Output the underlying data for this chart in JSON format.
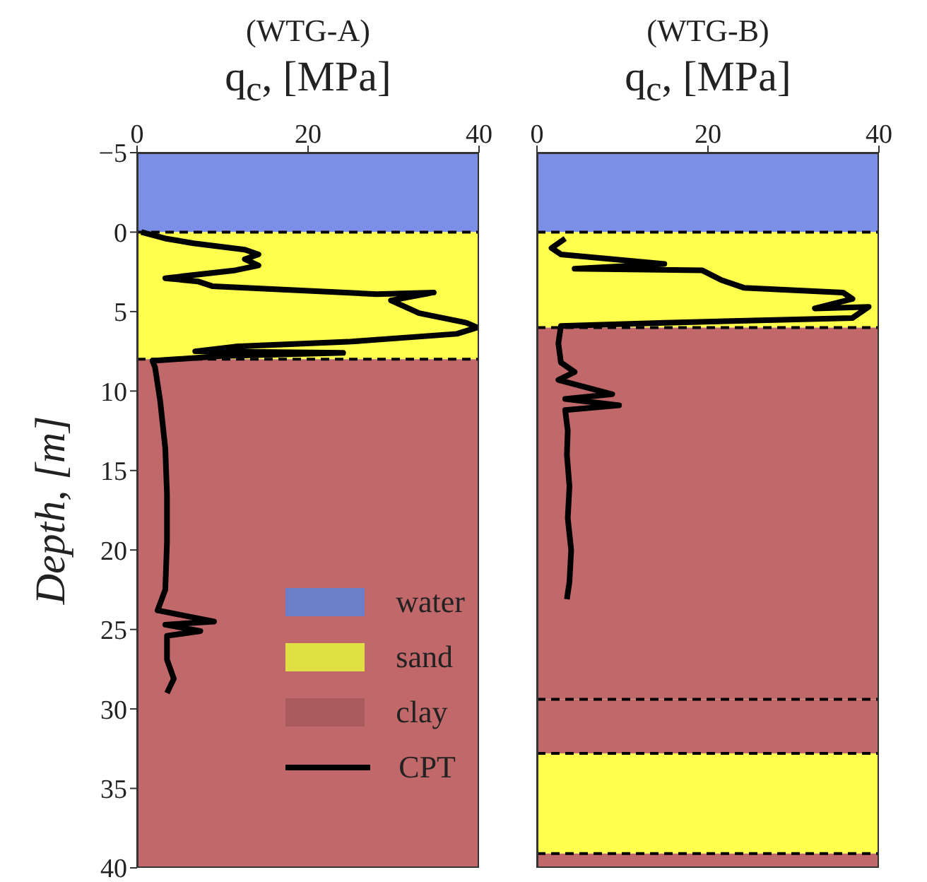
{
  "chart_data": [
    {
      "type": "line",
      "title": "(WTG-A)",
      "xlabel": "q$_{c}$, [MPa]",
      "ylabel": "Depth, [m]",
      "xlim": [
        0,
        40
      ],
      "xticks": [
        0,
        20,
        40
      ],
      "ylim": [
        40,
        -5
      ],
      "yticks": [
        -5,
        0,
        5,
        10,
        15,
        20,
        25,
        30,
        35,
        40
      ],
      "legend": "bottom right",
      "bands": [
        {
          "axis": "y",
          "from": -5,
          "to": 0,
          "label": "water",
          "color": "#7b8fe6"
        },
        {
          "axis": "y",
          "from": 0,
          "to": 8,
          "label": "sand",
          "color": "#ffff4d"
        },
        {
          "axis": "y",
          "from": 8,
          "to": 40,
          "label": "clay",
          "color": "#c0686a"
        }
      ],
      "ref_lines": [
        {
          "axis": "y",
          "value": 0,
          "line_style": "dashed",
          "color": "#000000"
        },
        {
          "axis": "y",
          "value": 8,
          "line_style": "dashed",
          "color": "#000000"
        }
      ],
      "series": [
        {
          "name": "CPT",
          "color": "#000000",
          "x": [
            0.5,
            3.3,
            6.6,
            12.6,
            14.2,
            12.6,
            14.2,
            11.5,
            3.3,
            7.1,
            8.8,
            28,
            34.7,
            29.7,
            33,
            38.5,
            39.8,
            37.4,
            24.7,
            11.5,
            6.8,
            24.1,
            9.9,
            1.8,
            2.1,
            2.7,
            3.3,
            3.5,
            3.5,
            3.3,
            2.4,
            9,
            3.3,
            7.4,
            3.5,
            3.5,
            4.3,
            3.5
          ],
          "values": [
            0,
            0.4,
            0.7,
            1.1,
            1.4,
            1.7,
            2.1,
            2.4,
            2.9,
            3.1,
            3.4,
            3.9,
            3.8,
            4.3,
            5.1,
            5.7,
            6,
            6.4,
            6.9,
            7.2,
            7.5,
            7.6,
            7.8,
            8.1,
            8.5,
            10.6,
            13.6,
            16.5,
            19.5,
            22.5,
            23.8,
            24.5,
            24.7,
            25.1,
            25.4,
            26.9,
            28.1,
            29
          ]
        }
      ]
    },
    {
      "type": "line",
      "title": "(WTG-B)",
      "xlabel": "q$_{c}$, [MPa]",
      "xlim": [
        0,
        40
      ],
      "xticks": [
        0,
        20,
        40
      ],
      "ylim": [
        40,
        -5
      ],
      "yticks": [
        -5,
        0,
        5,
        10,
        15,
        20,
        25,
        30,
        35,
        40
      ],
      "tick_labels": "x",
      "bands": [
        {
          "axis": "y",
          "from": -5,
          "to": 0,
          "color": "#7b8fe6"
        },
        {
          "axis": "y",
          "from": 0,
          "to": 6,
          "color": "#ffff4d"
        },
        {
          "axis": "y",
          "from": 6,
          "to": 29.4,
          "color": "#c0686a"
        },
        {
          "axis": "y",
          "from": 29.4,
          "to": 32.8,
          "color": "#c0686a"
        },
        {
          "axis": "y",
          "from": 32.8,
          "to": 39.1,
          "color": "#ffff4d"
        },
        {
          "axis": "y",
          "from": 39.1,
          "to": 40,
          "color": "#c0686a"
        }
      ],
      "ref_lines": [
        {
          "axis": "y",
          "value": 0,
          "line_style": "dashed",
          "color": "#000000"
        },
        {
          "axis": "y",
          "value": 6,
          "line_style": "dashed",
          "color": "#000000"
        },
        {
          "axis": "y",
          "value": 29.4,
          "line_style": "dashed",
          "color": "#000000"
        },
        {
          "axis": "y",
          "value": 32.8,
          "line_style": "dashed",
          "color": "#000000"
        },
        {
          "axis": "y",
          "value": 39.1,
          "line_style": "dashed",
          "color": "#000000"
        }
      ],
      "series": [
        {
          "color": "#000000",
          "x": [
            3.3,
            1.7,
            2.8,
            14.9,
            4.4,
            19.3,
            21.5,
            24.2,
            35.8,
            36.9,
            32.5,
            38.8,
            36.9,
            14.9,
            2.8,
            2.5,
            2.8,
            4.4,
            2.5,
            8.8,
            3.3,
            9.6,
            3.3,
            3.6,
            3.5,
            3.8,
            3.6,
            4,
            3.8,
            3.5
          ],
          "values": [
            0.4,
            1,
            1.4,
            2,
            2.3,
            2.4,
            3,
            3.5,
            3.8,
            4.2,
            4.8,
            4.7,
            5.4,
            5.7,
            5.9,
            7,
            8.2,
            8.8,
            9.3,
            10.2,
            10.5,
            10.9,
            11.2,
            12.5,
            14,
            16,
            18,
            20,
            22,
            23.1
          ]
        }
      ]
    }
  ]
}
